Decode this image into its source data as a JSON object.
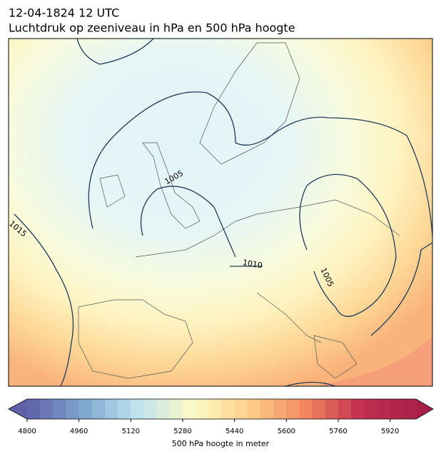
{
  "header": {
    "title": "12-04-1824 12 UTC",
    "subtitle": "Luchtdruk op zeeniveau in hPa en 500 hPa hoogte"
  },
  "contour_labels": [
    "1005",
    "1005",
    "1010",
    "1015"
  ],
  "colorbar": {
    "label": "500 hPa hoogte in meter",
    "range": [
      4800,
      6000
    ],
    "levels": 30,
    "ticks": [
      4800,
      4960,
      5120,
      5280,
      5440,
      5600,
      5760,
      5920
    ],
    "colormap": [
      "#5e60a8",
      "#7fa6cf",
      "#bfe3ef",
      "#fdfac4",
      "#fdd08a",
      "#f3885f",
      "#c23050",
      "#a8204a"
    ]
  }
}
